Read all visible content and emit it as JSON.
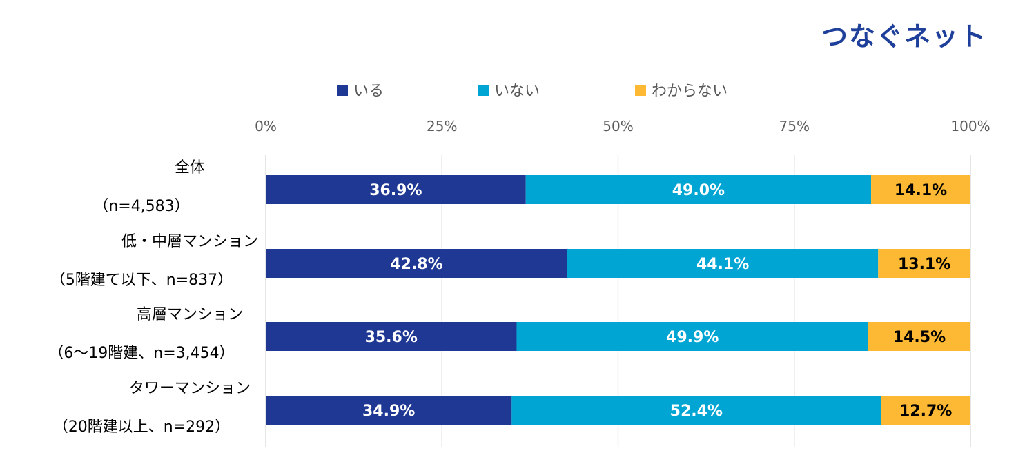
{
  "logo": {
    "text": "つなぐネット",
    "color": "#1e3f9a"
  },
  "chart_data": {
    "type": "bar",
    "orientation": "horizontal-stacked-100",
    "categories": [
      [
        "全体",
        "（n=4,583）"
      ],
      [
        "低・中層マンション",
        "（5階建て以下、n=837）"
      ],
      [
        "高層マンション",
        "（6～19階建、n=3,454）"
      ],
      [
        "タワーマンション",
        "（20階建以上、n=292）"
      ]
    ],
    "series": [
      {
        "name": "いる",
        "color": "#1f3893",
        "label_color": "#ffffff",
        "values": [
          36.9,
          42.8,
          35.6,
          34.9
        ]
      },
      {
        "name": "いない",
        "color": "#00a5d3",
        "label_color": "#ffffff",
        "values": [
          49.0,
          44.1,
          49.9,
          52.4
        ]
      },
      {
        "name": "わからない",
        "color": "#fdb933",
        "label_color": "#000000",
        "values": [
          14.1,
          13.1,
          14.5,
          12.7
        ]
      }
    ],
    "xlim": [
      0,
      100
    ],
    "xticks": [
      0,
      25,
      50,
      75,
      100
    ],
    "xtick_labels": [
      "0%",
      "25%",
      "50%",
      "75%",
      "100%"
    ],
    "grid": true,
    "legend": "top-center",
    "xlabel": "",
    "ylabel": "",
    "title": ""
  }
}
